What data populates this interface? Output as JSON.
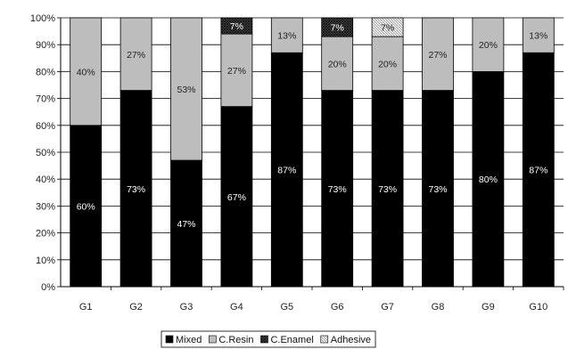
{
  "chart_data": {
    "type": "bar",
    "stacked": true,
    "percent": true,
    "categories": [
      "G1",
      "G2",
      "G3",
      "G4",
      "G5",
      "G6",
      "G7",
      "G8",
      "G9",
      "G10"
    ],
    "ylim": [
      0,
      100
    ],
    "yticks": [
      "0%",
      "10%",
      "20%",
      "30%",
      "40%",
      "50%",
      "60%",
      "70%",
      "80%",
      "90%",
      "100%"
    ],
    "grid": true,
    "legend_position": "bottom",
    "series": [
      {
        "name": "Mixed",
        "color": "#000000",
        "label_color": "#ffffff",
        "values": [
          60,
          73,
          47,
          67,
          87,
          73,
          73,
          73,
          80,
          87
        ],
        "labels": [
          "60%",
          "73%",
          "47%",
          "67%",
          "87%",
          "73%",
          "73%",
          "73%",
          "80%",
          "87%"
        ]
      },
      {
        "name": "C.Resin",
        "color": "#bdbdbd",
        "label_color": "#222222",
        "values": [
          40,
          27,
          53,
          27,
          13,
          20,
          20,
          27,
          20,
          13
        ],
        "labels": [
          "40%",
          "27%",
          "53%",
          "27%",
          "13%",
          "20%",
          "20%",
          "27%",
          "20%",
          "13%"
        ]
      },
      {
        "name": "C.Enamel",
        "color": "#3a3a3a",
        "pattern": "dark-hatch",
        "label_color": "#ffffff",
        "values": [
          0,
          0,
          0,
          7,
          0,
          7,
          0,
          0,
          0,
          0
        ],
        "labels": [
          "",
          "",
          "",
          "7%",
          "",
          "7%",
          "",
          "",
          "",
          ""
        ]
      },
      {
        "name": "Adhesive",
        "color": "#e6e6e6",
        "pattern": "light-hatch",
        "label_color": "#222222",
        "values": [
          0,
          0,
          0,
          0,
          0,
          0,
          7,
          0,
          0,
          0
        ],
        "labels": [
          "",
          "",
          "",
          "",
          "",
          "",
          "7%",
          "",
          "",
          ""
        ]
      }
    ]
  }
}
